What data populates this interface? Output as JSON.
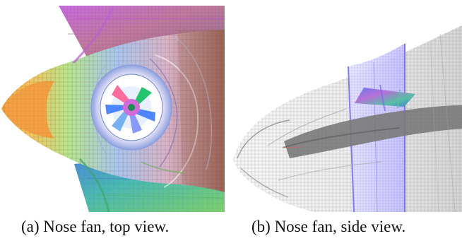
{
  "figure": {
    "colors": {
      "wing_magenta": "#b95cc5",
      "wing_teal": "#57c2b3",
      "fuselage_brown": "#9a6354",
      "nose_orange": "#f2a243",
      "fan_blue": "#4d87ff",
      "fan_pink": "#ff6d9f",
      "fan_green": "#22c56c",
      "mesh_gray": "#777777",
      "duct_blue": "#6f63ff"
    },
    "panels": [
      {
        "caption": "(a) Nose fan, top view."
      },
      {
        "caption": "(b) Nose fan, side view."
      }
    ]
  }
}
